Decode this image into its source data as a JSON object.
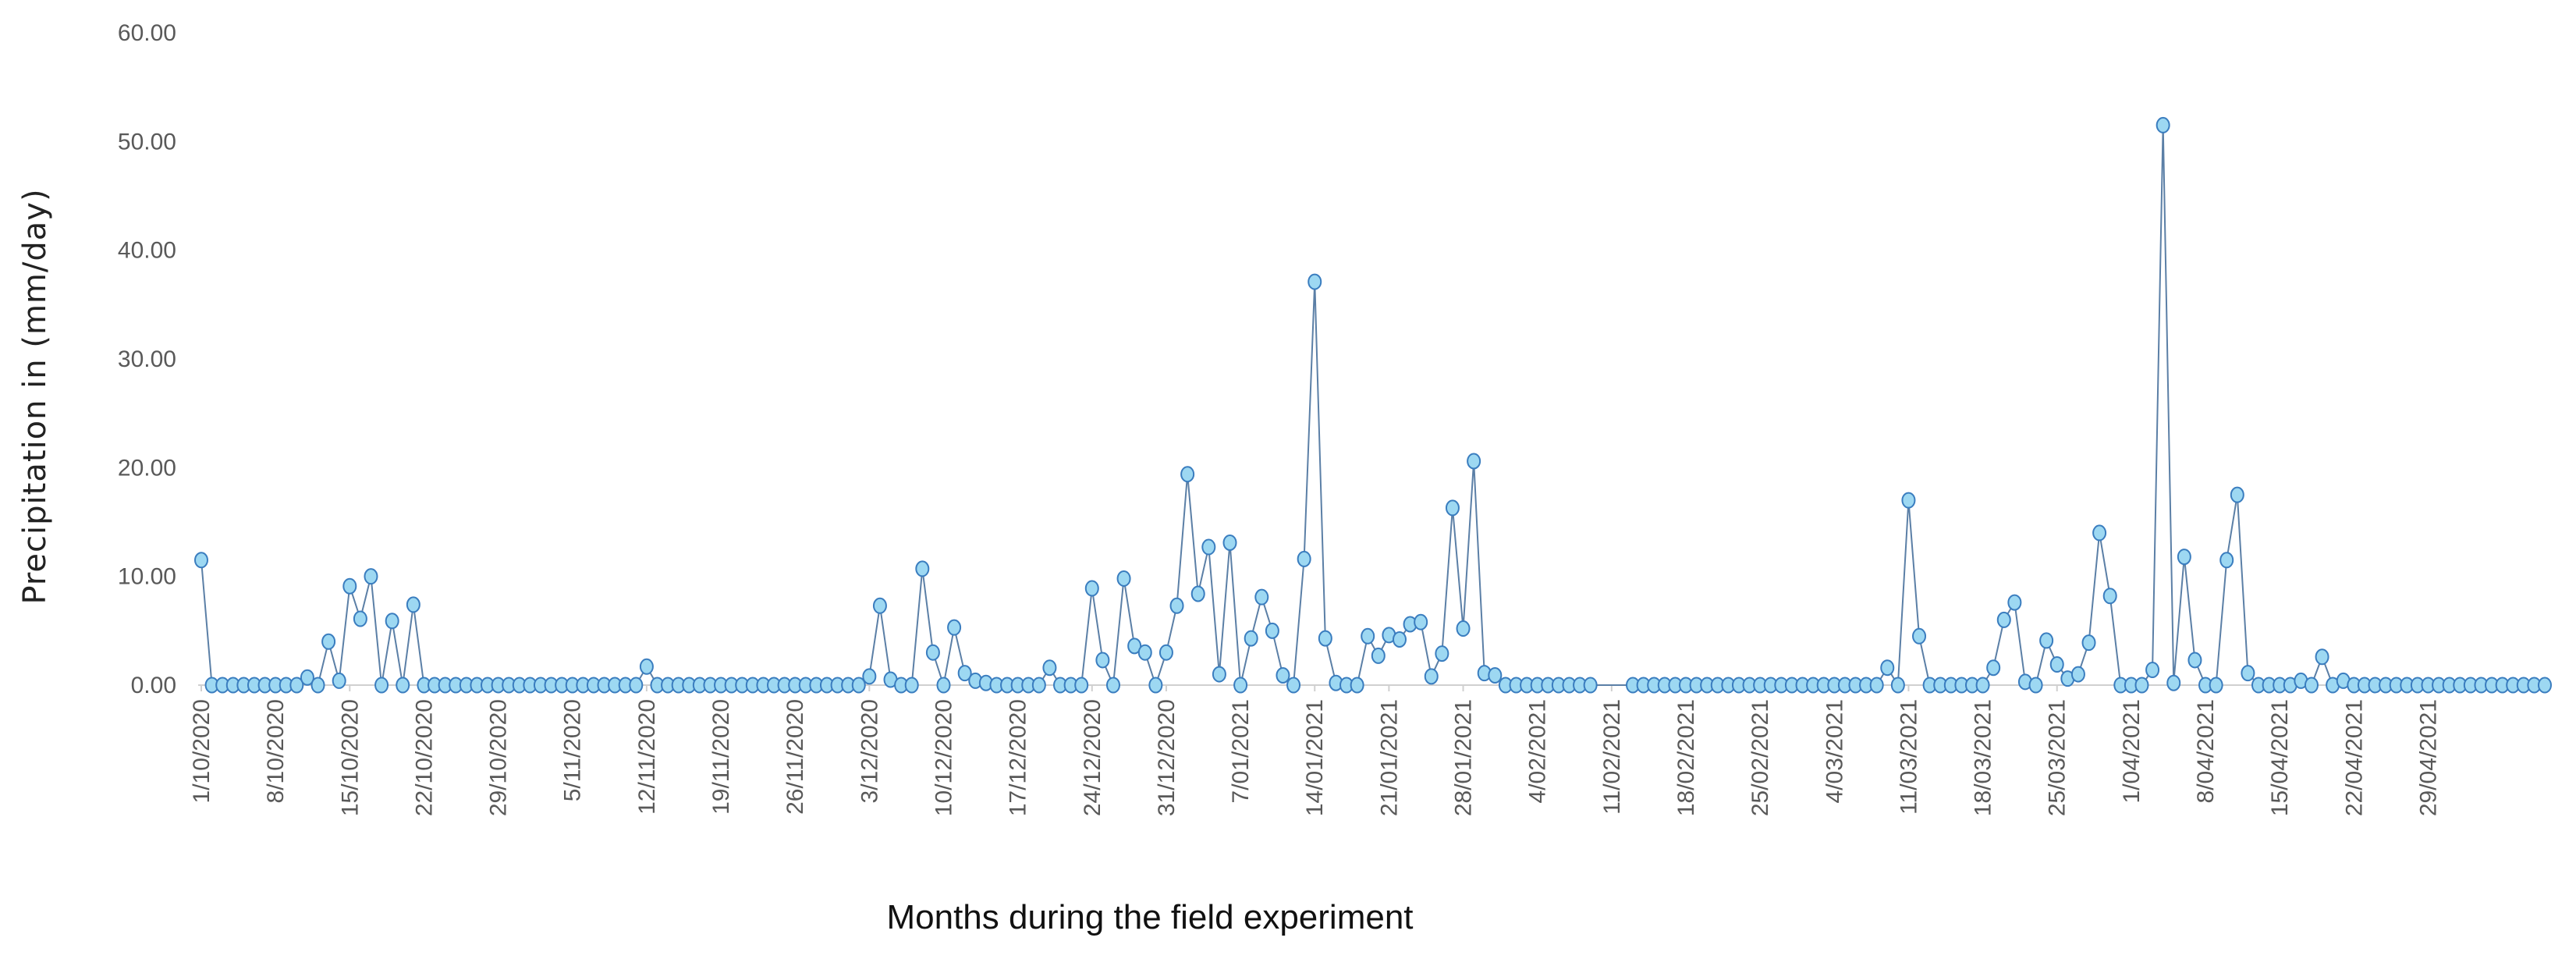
{
  "chart_data": {
    "type": "line",
    "title": "",
    "xlabel": "Months during the field experiment",
    "ylabel": "Precipitation in (mm/day)",
    "ylim": [
      0,
      60
    ],
    "yticks": [
      "0.00",
      "10.00",
      "20.00",
      "30.00",
      "40.00",
      "50.00",
      "60.00"
    ],
    "grid": false,
    "legend": "none",
    "x_start": "1/10/2020",
    "x_end": "29/04/2021",
    "x_tick_labels": [
      "1/10/2020",
      "8/10/2020",
      "15/10/2020",
      "22/10/2020",
      "29/10/2020",
      "5/11/2020",
      "12/11/2020",
      "19/11/2020",
      "26/11/2020",
      "3/12/2020",
      "10/12/2020",
      "17/12/2020",
      "24/12/2020",
      "31/12/2020",
      "7/01/2021",
      "14/01/2021",
      "21/01/2021",
      "28/01/2021",
      "4/02/2021",
      "11/02/2021",
      "18/02/2021",
      "25/02/2021",
      "4/03/2021",
      "11/03/2021",
      "18/03/2021",
      "25/03/2021",
      "1/04/2021",
      "8/04/2021",
      "15/04/2021",
      "22/04/2021",
      "29/04/2021"
    ],
    "series": [
      {
        "name": "Precipitation",
        "line_color": "#5b7fa6",
        "marker_fill": "#9dd8f2",
        "marker_edge": "#3a7dbf",
        "values": [
          11.5,
          0,
          0,
          0,
          0,
          0,
          0,
          0,
          0,
          0,
          0.7,
          0,
          4,
          0.4,
          9.1,
          6.1,
          10,
          0,
          5.9,
          0,
          7.4,
          0,
          0,
          0,
          0,
          0,
          0,
          0,
          0,
          0,
          0,
          0,
          0,
          0,
          0,
          0,
          0,
          0,
          0,
          0,
          0,
          0,
          1.7,
          0,
          0,
          0,
          0,
          0,
          0,
          0,
          0,
          0,
          0,
          0,
          0,
          0,
          0,
          0,
          0,
          0,
          0,
          0,
          0,
          0.8,
          7.3,
          0.5,
          0,
          0,
          10.7,
          3,
          0,
          5.3,
          1.1,
          0.4,
          0.2,
          0,
          0,
          0,
          0,
          0,
          1.6,
          0,
          0,
          0,
          8.9,
          2.3,
          0,
          9.8,
          3.6,
          3,
          0,
          3,
          7.3,
          19.4,
          8.4,
          12.7,
          1,
          13.1,
          0,
          4.3,
          8.1,
          5,
          0.9,
          0,
          11.6,
          37.1,
          4.3,
          0.2,
          0,
          0,
          4.5,
          2.7,
          4.6,
          4.2,
          5.6,
          5.8,
          0.8,
          2.9,
          16.3,
          5.2,
          20.6,
          1.1,
          0.9,
          0,
          0,
          0,
          0,
          0,
          0,
          0,
          0,
          0,
          null,
          null,
          null,
          0,
          0,
          0,
          0,
          0,
          0,
          0,
          0,
          0,
          0,
          0,
          0,
          0,
          0,
          0,
          0,
          0,
          0,
          0,
          0,
          0,
          0,
          0,
          0,
          1.6,
          0,
          17,
          4.5,
          0,
          0,
          0,
          0,
          0,
          0,
          1.6,
          6,
          7.6,
          0.3,
          0,
          4.1,
          1.9,
          0.6,
          1,
          3.9,
          14,
          8.2,
          0,
          0,
          0,
          1.4,
          51.5,
          0.2,
          11.8,
          2.3,
          0,
          0,
          11.5,
          17.5,
          1.1,
          0,
          0,
          0,
          0,
          0.4,
          0,
          2.6,
          0,
          0.4,
          0,
          0,
          0,
          0,
          0,
          0,
          0,
          0,
          0,
          0,
          0,
          0,
          0,
          0,
          0,
          0,
          0,
          0,
          0
        ]
      }
    ]
  }
}
